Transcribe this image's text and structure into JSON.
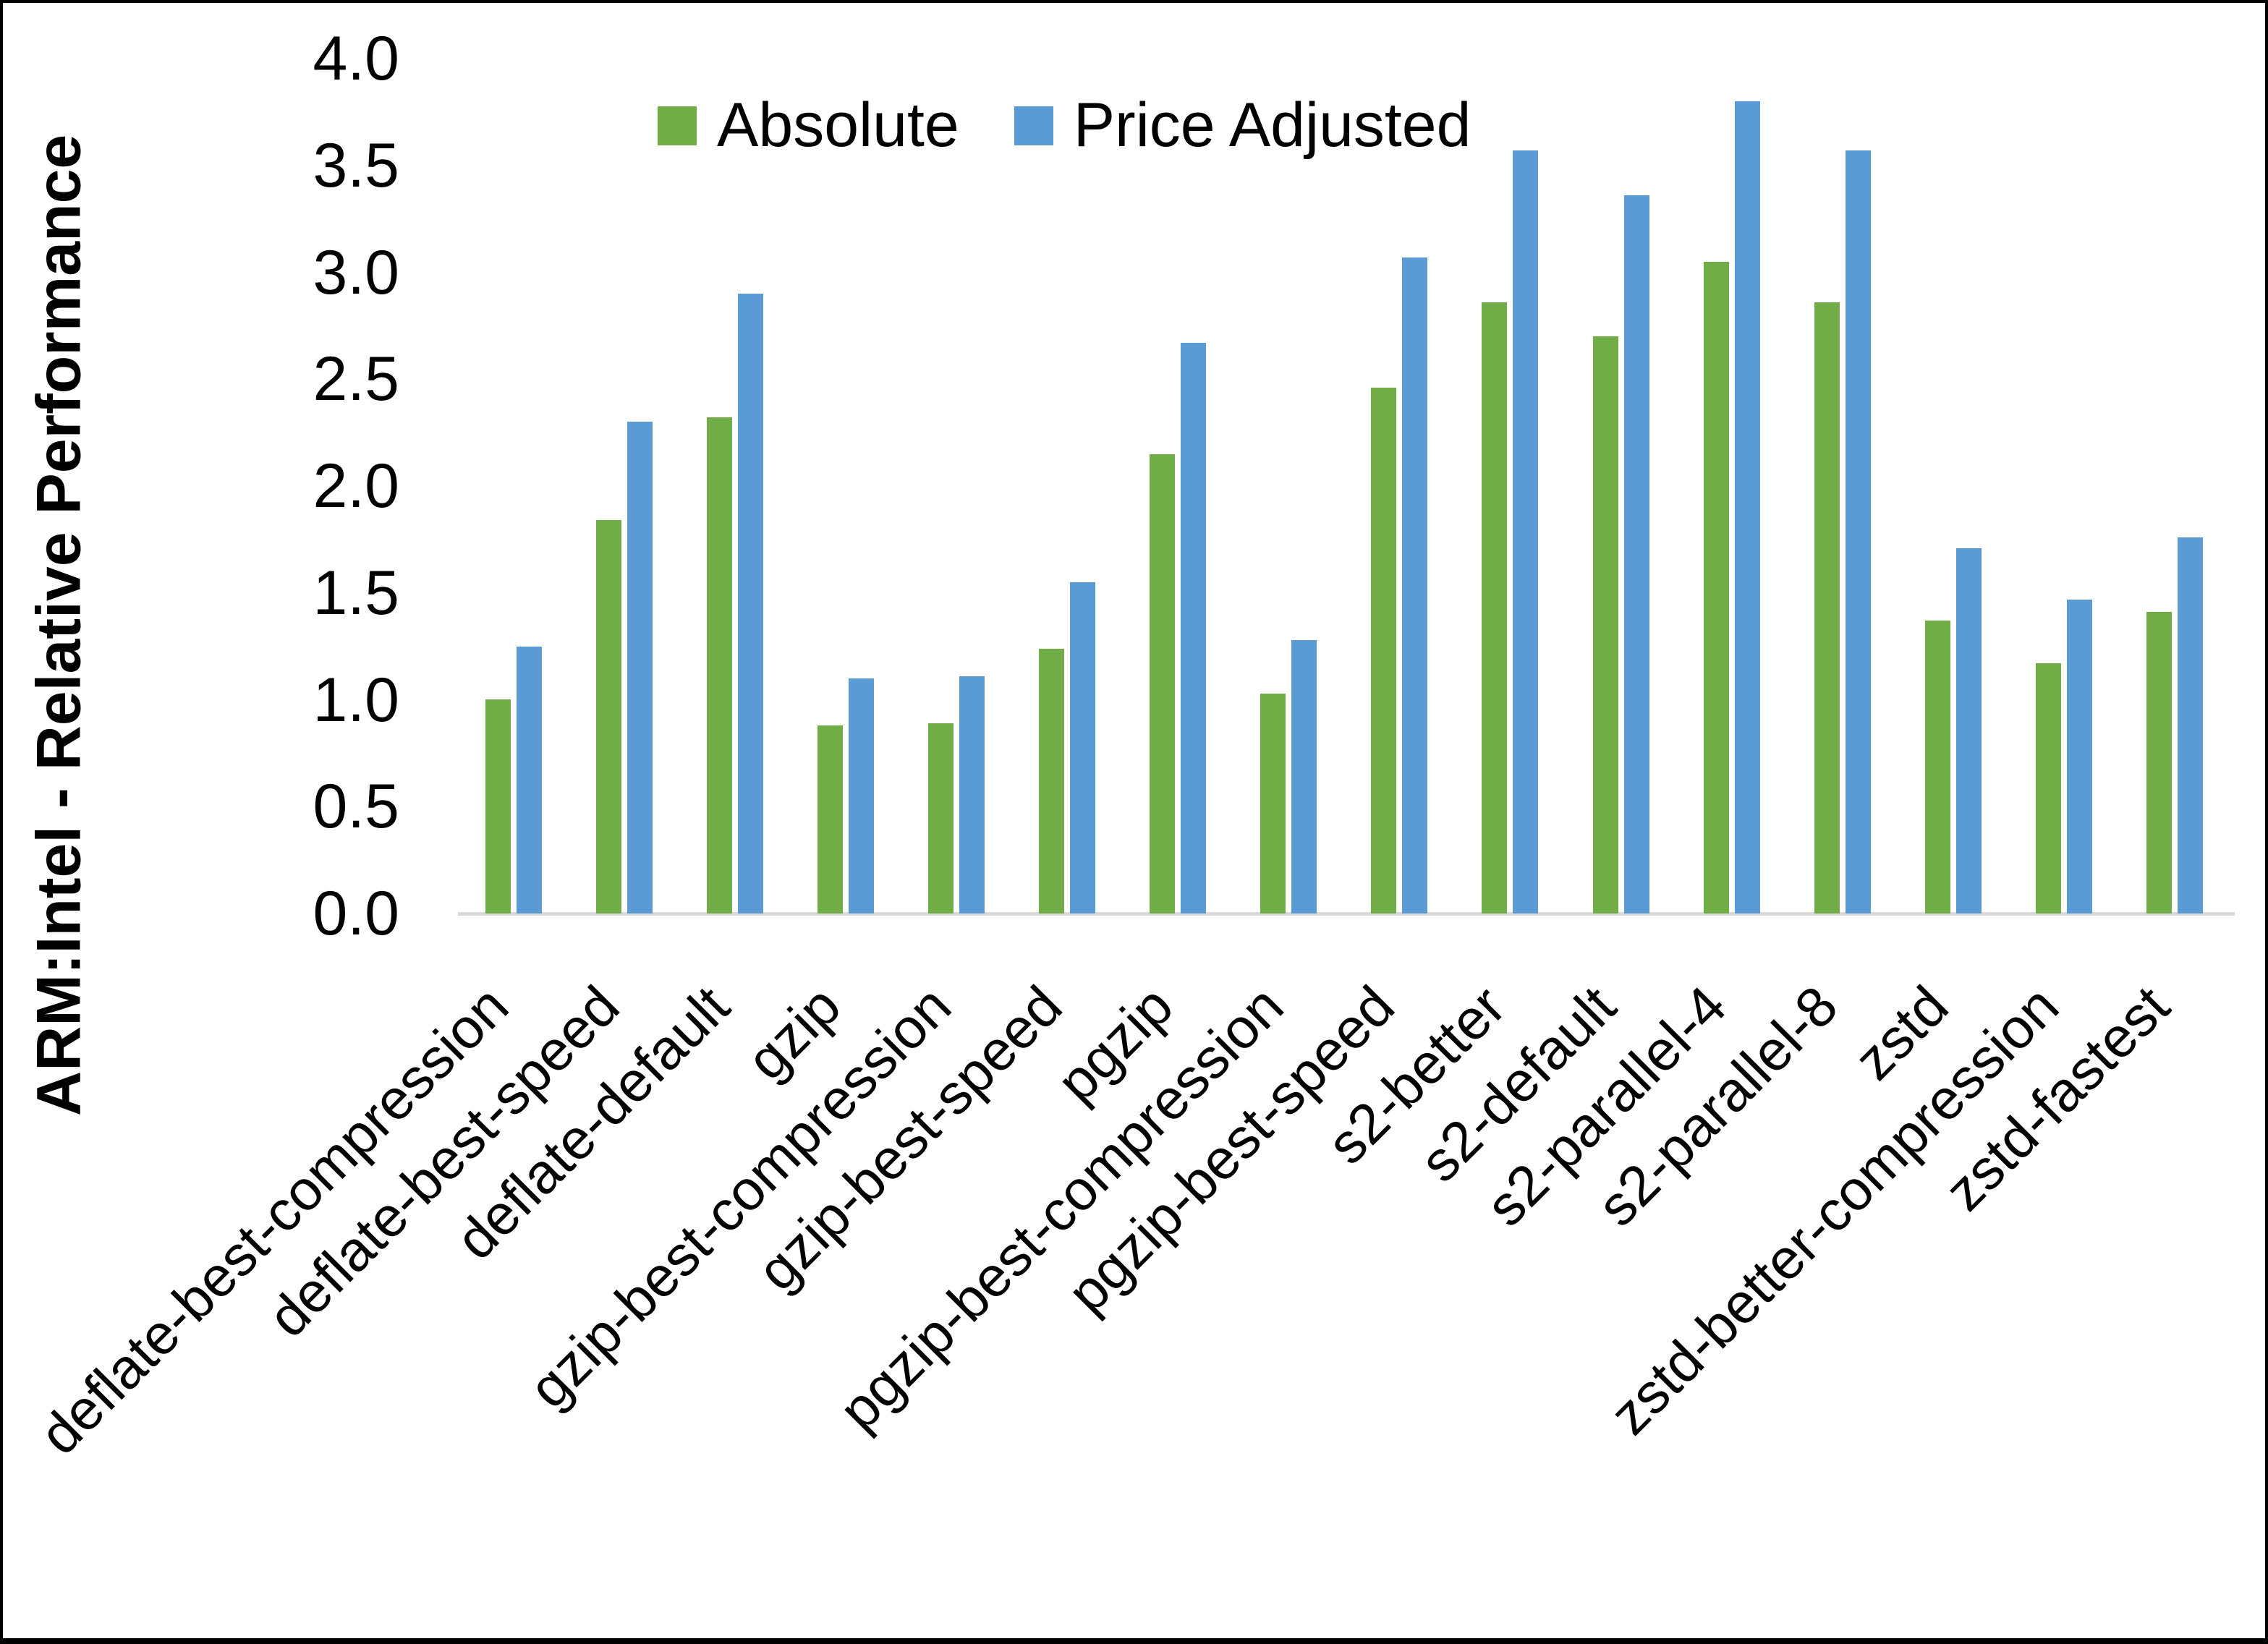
{
  "chart_data": {
    "type": "bar",
    "title": "",
    "ylabel": "ARM:Intel - Relative Performance",
    "xlabel": "",
    "ylim": [
      0.0,
      4.0
    ],
    "ytick_step": 0.5,
    "yticks": [
      "0.0",
      "0.5",
      "1.0",
      "1.5",
      "2.0",
      "2.5",
      "3.0",
      "3.5",
      "4.0"
    ],
    "grid": false,
    "legend_position": "top-center",
    "axis_line_color": "#D9D9D9",
    "categories": [
      "deflate-best-compression",
      "deflate-best-speed",
      "deflate-default",
      "gzip",
      "gzip-best-compression",
      "gzip-best-speed",
      "pgzip",
      "pgzip-best-compression",
      "pgzip-best-speed",
      "s2-better",
      "s2-default",
      "s2-parallel-4",
      "s2-parallel-8",
      "zstd",
      "zstd-better-compression",
      "zstd-fastest"
    ],
    "series": [
      {
        "name": "Absolute",
        "color": "#70AD47",
        "values": [
          1.0,
          1.84,
          2.32,
          0.88,
          0.89,
          1.24,
          2.15,
          1.03,
          2.46,
          2.86,
          2.7,
          3.05,
          2.86,
          1.37,
          1.17,
          1.41
        ]
      },
      {
        "name": "Price Adjusted",
        "color": "#5B9BD5",
        "values": [
          1.25,
          2.3,
          2.9,
          1.1,
          1.11,
          1.55,
          2.67,
          1.28,
          3.07,
          3.57,
          3.36,
          3.8,
          3.57,
          1.71,
          1.47,
          1.76
        ]
      }
    ]
  }
}
